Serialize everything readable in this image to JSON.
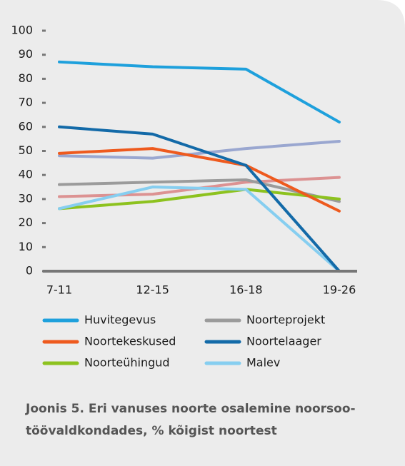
{
  "chart_data": {
    "type": "line",
    "categories": [
      "7-11",
      "12-15",
      "16-18",
      "19-26"
    ],
    "series": [
      {
        "name": "Huvitegevus",
        "color": "#1ea0dc",
        "values": [
          87,
          85,
          84,
          62
        ]
      },
      {
        "name": "Noorteprojekt",
        "color": "#9b9b9b",
        "values": [
          36,
          37,
          38,
          29
        ]
      },
      {
        "name": "Noortekeskused",
        "color": "#ee5a1e",
        "values": [
          49,
          51,
          44,
          25
        ]
      },
      {
        "name": "Noortelaager",
        "color": "#136aa8",
        "values": [
          60,
          57,
          44,
          0
        ]
      },
      {
        "name": "Noorteühingud",
        "color": "#8dc21f",
        "values": [
          26,
          29,
          34,
          30
        ]
      },
      {
        "name": "Malev",
        "color": "#86cef0",
        "values": [
          26,
          35,
          34,
          0
        ]
      },
      {
        "color": "#9aa7d0",
        "values": [
          48,
          47,
          51,
          54
        ]
      },
      {
        "color": "#dc9292",
        "values": [
          31,
          32,
          37,
          39
        ]
      }
    ],
    "ylim": [
      0,
      100
    ],
    "yticks": [
      0,
      10,
      20,
      30,
      40,
      50,
      60,
      70,
      80,
      90,
      100
    ],
    "caption": [
      "Joonis 5. Eri vanuses noorte osalemine noorsoo-",
      "töövaldkondades, % kõigist noortest"
    ]
  }
}
